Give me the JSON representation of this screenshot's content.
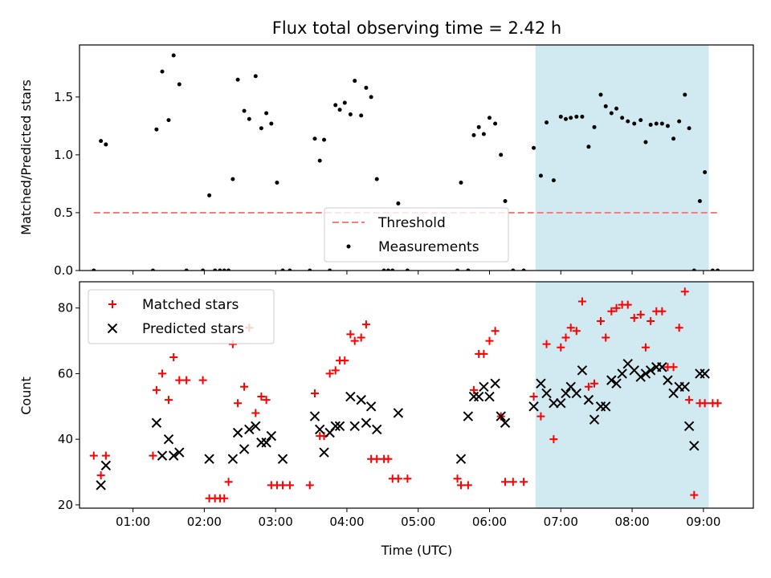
{
  "chart_data": [
    {
      "type": "scatter",
      "title": "Flux total observing time = 2.42 h",
      "ylabel": "Matched/Predicted stars",
      "xlabel": "",
      "xlim": [
        0.25,
        9.7
      ],
      "ylim": [
        0,
        1.95
      ],
      "yticks": [
        0.0,
        0.5,
        1.0,
        1.5
      ],
      "ytick_labels": [
        "0.0",
        "0.5",
        "1.0",
        "1.5"
      ],
      "highlight_span": [
        6.65,
        9.07
      ],
      "highlight_color": "#add8e6",
      "legend": {
        "position": "lower-center",
        "entries": [
          "Threshold",
          "Measurements"
        ]
      },
      "threshold": {
        "name": "Threshold",
        "y": 0.5,
        "x_range": [
          0.45,
          9.2
        ],
        "color": "#f08080",
        "style": "dashed"
      },
      "series": [
        {
          "name": "Measurements",
          "color": "#000000",
          "marker": "dot",
          "x": [
            0.45,
            0.55,
            0.62,
            1.28,
            1.33,
            1.41,
            1.5,
            1.57,
            1.65,
            1.75,
            1.98,
            2.07,
            2.15,
            2.22,
            2.28,
            2.34,
            2.4,
            2.47,
            2.56,
            2.63,
            2.72,
            2.8,
            2.87,
            2.94,
            3.02,
            3.1,
            3.2,
            3.48,
            3.55,
            3.62,
            3.68,
            3.76,
            3.84,
            3.9,
            3.97,
            4.05,
            4.11,
            4.2,
            4.27,
            4.34,
            4.42,
            4.52,
            4.58,
            4.64,
            4.72,
            4.85,
            5.55,
            5.6,
            5.7,
            5.78,
            5.85,
            5.92,
            6.0,
            6.08,
            6.16,
            6.22,
            6.33,
            6.48,
            6.62,
            6.72,
            6.8,
            6.9,
            7.0,
            7.07,
            7.14,
            7.22,
            7.3,
            7.39,
            7.47,
            7.56,
            7.63,
            7.71,
            7.78,
            7.86,
            7.94,
            8.03,
            8.12,
            8.19,
            8.26,
            8.34,
            8.42,
            8.5,
            8.58,
            8.66,
            8.74,
            8.8,
            8.87,
            8.95,
            9.02,
            9.13,
            9.2
          ],
          "y": [
            0.0,
            1.12,
            1.09,
            0.0,
            1.22,
            1.72,
            1.3,
            1.86,
            1.61,
            0.0,
            0.0,
            0.65,
            0.0,
            0.0,
            0.0,
            0.0,
            0.79,
            1.65,
            1.38,
            1.31,
            1.68,
            1.23,
            1.36,
            1.27,
            0.76,
            0.0,
            0.0,
            0.0,
            1.14,
            0.95,
            1.13,
            0.0,
            1.43,
            1.39,
            1.45,
            1.35,
            1.64,
            1.34,
            1.58,
            1.5,
            0.79,
            0.0,
            0.0,
            0.0,
            0.58,
            0.0,
            0.0,
            0.76,
            0.0,
            1.17,
            1.24,
            1.18,
            1.32,
            1.27,
            1.0,
            0.6,
            0.0,
            0.0,
            1.06,
            0.82,
            1.28,
            0.78,
            1.33,
            1.31,
            1.32,
            1.33,
            1.33,
            1.07,
            1.24,
            1.52,
            1.42,
            1.36,
            1.4,
            1.32,
            1.29,
            1.27,
            1.3,
            1.11,
            1.26,
            1.27,
            1.27,
            1.25,
            1.14,
            1.29,
            1.52,
            1.23,
            0.0,
            0.6,
            0.85,
            0.0,
            0.0
          ]
        }
      ]
    },
    {
      "type": "scatter",
      "title": "",
      "ylabel": "Count",
      "xlabel": "Time (UTC)",
      "xlim": [
        0.25,
        9.7
      ],
      "ylim": [
        19,
        88
      ],
      "yticks": [
        20,
        40,
        60,
        80
      ],
      "ytick_labels": [
        "20",
        "40",
        "60",
        "80"
      ],
      "xticks": [
        1,
        2,
        3,
        4,
        5,
        6,
        7,
        8,
        9
      ],
      "xtick_labels": [
        "01:00",
        "02:00",
        "03:00",
        "04:00",
        "05:00",
        "06:00",
        "07:00",
        "08:00",
        "09:00"
      ],
      "highlight_span": [
        6.65,
        9.07
      ],
      "highlight_color": "#add8e6",
      "legend": {
        "position": "top-left",
        "entries": [
          "Matched stars",
          "Predicted stars"
        ]
      },
      "series": [
        {
          "name": "Matched stars",
          "color": "#ff0000",
          "marker": "plus",
          "x": [
            0.45,
            0.55,
            0.62,
            1.28,
            1.33,
            1.41,
            1.5,
            1.57,
            1.65,
            1.75,
            1.98,
            2.07,
            2.15,
            2.22,
            2.28,
            2.34,
            2.4,
            2.47,
            2.56,
            2.63,
            2.72,
            2.8,
            2.87,
            2.94,
            3.02,
            3.1,
            3.2,
            3.48,
            3.55,
            3.62,
            3.68,
            3.76,
            3.84,
            3.9,
            3.97,
            4.05,
            4.11,
            4.2,
            4.27,
            4.34,
            4.42,
            4.52,
            4.58,
            4.64,
            4.72,
            4.85,
            5.55,
            5.6,
            5.7,
            5.78,
            5.85,
            5.92,
            6.0,
            6.08,
            6.16,
            6.22,
            6.33,
            6.48,
            6.62,
            6.72,
            6.8,
            6.9,
            7.0,
            7.07,
            7.14,
            7.22,
            7.3,
            7.39,
            7.47,
            7.56,
            7.63,
            7.71,
            7.78,
            7.86,
            7.94,
            8.03,
            8.12,
            8.19,
            8.26,
            8.34,
            8.42,
            8.5,
            8.58,
            8.66,
            8.74,
            8.8,
            8.87,
            8.95,
            9.02,
            9.13,
            9.2
          ],
          "y": [
            35,
            29,
            35,
            35,
            55,
            60,
            52,
            65,
            58,
            58,
            58,
            22,
            22,
            22,
            22,
            27,
            69,
            51,
            56,
            74,
            48,
            53,
            52,
            26,
            26,
            26,
            26,
            26,
            54,
            41,
            41,
            60,
            61,
            64,
            64,
            72,
            70,
            71,
            75,
            34,
            34,
            34,
            34,
            28,
            28,
            28,
            28,
            26,
            26,
            55,
            66,
            66,
            70,
            73,
            47,
            27,
            27,
            27,
            53,
            47,
            69,
            40,
            68,
            71,
            74,
            73,
            82,
            56,
            57,
            76,
            71,
            79,
            80,
            81,
            81,
            77,
            78,
            68,
            76,
            79,
            79,
            62,
            62,
            74,
            85,
            52,
            23,
            51,
            51,
            51,
            51
          ],
          "note_xy": "parallel arrays"
        },
        {
          "name": "Predicted stars",
          "color": "#000000",
          "marker": "cross",
          "x": [
            0.55,
            0.62,
            1.33,
            1.41,
            1.5,
            1.57,
            1.65,
            2.07,
            2.4,
            2.47,
            2.56,
            2.63,
            2.72,
            2.8,
            2.87,
            2.94,
            3.1,
            3.55,
            3.62,
            3.68,
            3.76,
            3.84,
            3.9,
            4.05,
            4.11,
            4.2,
            4.27,
            4.34,
            4.42,
            4.72,
            5.6,
            5.7,
            5.78,
            5.85,
            5.92,
            6.0,
            6.08,
            6.16,
            6.22,
            6.62,
            6.72,
            6.8,
            6.9,
            7.0,
            7.07,
            7.14,
            7.22,
            7.3,
            7.39,
            7.47,
            7.56,
            7.63,
            7.71,
            7.78,
            7.86,
            7.94,
            8.03,
            8.12,
            8.19,
            8.26,
            8.34,
            8.42,
            8.5,
            8.58,
            8.66,
            8.74,
            8.8,
            8.87,
            8.95,
            9.02
          ],
          "y": [
            26,
            32,
            45,
            35,
            40,
            35,
            36,
            34,
            34,
            42,
            37,
            43,
            44,
            39,
            39,
            41,
            34,
            47,
            43,
            36,
            42,
            44,
            44,
            53,
            44,
            52,
            45,
            50,
            43,
            48,
            34,
            47,
            53,
            53,
            56,
            53,
            57,
            47,
            45,
            50,
            57,
            54,
            51,
            51,
            54,
            56,
            54,
            61,
            52,
            46,
            50,
            50,
            58,
            57,
            60,
            63,
            61,
            59,
            60,
            61,
            62,
            62,
            58,
            54,
            56,
            56,
            44,
            38,
            60,
            60
          ]
        }
      ]
    }
  ]
}
